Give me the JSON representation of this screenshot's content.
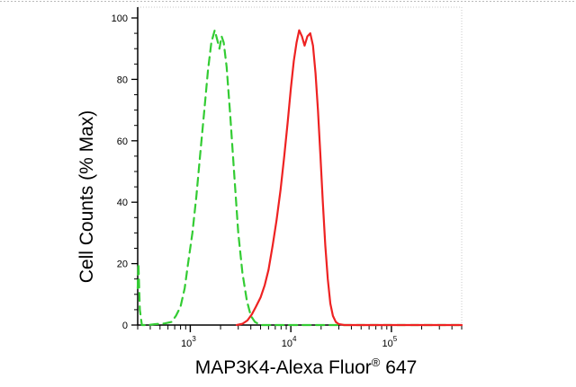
{
  "chart_data": {
    "type": "line",
    "title": "",
    "xlabel": "MAP3K4-Alexa Fluor",
    "xlabel_superscript": "®",
    "xlabel_suffix": " 647",
    "ylabel": "Cell Counts (% Max)",
    "x_scale": "log",
    "xlim": [
      300,
      500000
    ],
    "ylim": [
      0,
      100
    ],
    "y_ticks": [
      {
        "value": 0,
        "label": "0"
      },
      {
        "value": 20,
        "label": "20"
      },
      {
        "value": 40,
        "label": "40"
      },
      {
        "value": 60,
        "label": "60"
      },
      {
        "value": 80,
        "label": "80"
      },
      {
        "value": 100,
        "label": "100"
      }
    ],
    "x_major_ticks": [
      {
        "value": 1000,
        "base": "10",
        "exp": "3"
      },
      {
        "value": 10000,
        "base": "10",
        "exp": "4"
      },
      {
        "value": 100000,
        "base": "10",
        "exp": "5"
      }
    ],
    "grid": false,
    "legend": "none",
    "series": [
      {
        "color": "#33cc33",
        "style": "dashed",
        "points": [
          [
            300,
            12
          ],
          [
            305,
            20
          ],
          [
            315,
            5
          ],
          [
            330,
            0
          ],
          [
            380,
            0
          ],
          [
            450,
            0.3
          ],
          [
            550,
            0.5
          ],
          [
            650,
            1
          ],
          [
            720,
            3
          ],
          [
            800,
            6
          ],
          [
            880,
            12
          ],
          [
            950,
            20
          ],
          [
            1050,
            30
          ],
          [
            1150,
            42
          ],
          [
            1250,
            55
          ],
          [
            1380,
            70
          ],
          [
            1500,
            83
          ],
          [
            1620,
            92
          ],
          [
            1750,
            96
          ],
          [
            1850,
            93
          ],
          [
            1950,
            90
          ],
          [
            2050,
            94
          ],
          [
            2150,
            92
          ],
          [
            2300,
            84
          ],
          [
            2500,
            68
          ],
          [
            2750,
            48
          ],
          [
            3000,
            30
          ],
          [
            3300,
            17
          ],
          [
            3650,
            8
          ],
          [
            4000,
            3
          ],
          [
            4400,
            1
          ],
          [
            5000,
            0
          ],
          [
            500000,
            0
          ]
        ]
      },
      {
        "color": "#ee2222",
        "style": "solid",
        "points": [
          [
            2900,
            0
          ],
          [
            3300,
            0.4
          ],
          [
            3700,
            1.5
          ],
          [
            4100,
            3.5
          ],
          [
            4500,
            6
          ],
          [
            5000,
            9
          ],
          [
            5500,
            13
          ],
          [
            6000,
            18
          ],
          [
            6600,
            26
          ],
          [
            7200,
            34
          ],
          [
            7900,
            44
          ],
          [
            8600,
            55
          ],
          [
            9300,
            66
          ],
          [
            10000,
            77
          ],
          [
            10700,
            86
          ],
          [
            11400,
            92
          ],
          [
            12100,
            96
          ],
          [
            12900,
            94
          ],
          [
            13700,
            91
          ],
          [
            14600,
            94
          ],
          [
            15600,
            95
          ],
          [
            16600,
            91
          ],
          [
            17600,
            82
          ],
          [
            18600,
            70
          ],
          [
            19700,
            55
          ],
          [
            20800,
            40
          ],
          [
            22000,
            26
          ],
          [
            23300,
            15
          ],
          [
            24700,
            7
          ],
          [
            26200,
            3
          ],
          [
            28000,
            1
          ],
          [
            30000,
            0.3
          ],
          [
            34000,
            0
          ],
          [
            500000,
            0
          ]
        ]
      }
    ]
  }
}
